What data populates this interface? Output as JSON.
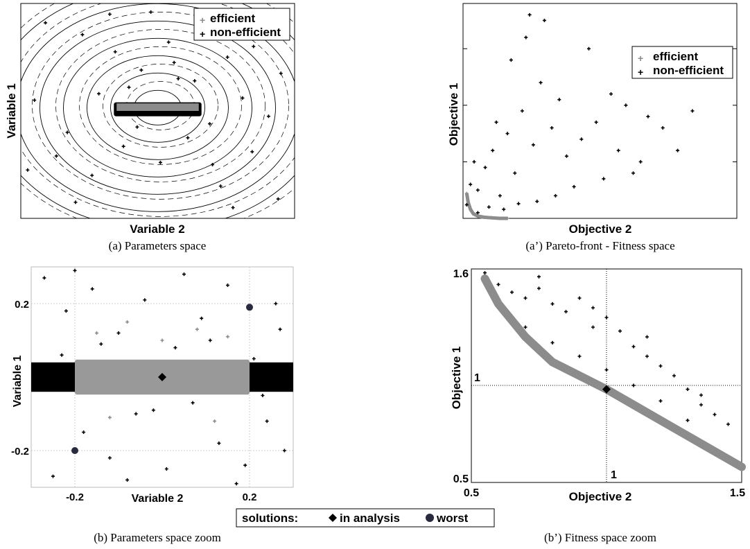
{
  "chart_data": [
    {
      "id": "a",
      "type": "scatter",
      "caption": "(a) Parameters space",
      "xlabel": "Variable 2",
      "ylabel": "Variable 1",
      "xlim": [
        -1,
        1
      ],
      "ylim": [
        -1,
        1
      ],
      "grid": false,
      "legend": {
        "position": "top-right",
        "entries": [
          "efficient",
          "non-efficient"
        ]
      },
      "series": [
        {
          "name": "non-efficient",
          "color": "#000000",
          "marker": "plus",
          "x": [
            -0.82,
            -0.55,
            -0.31,
            -0.12,
            0.08,
            0.27,
            0.51,
            0.74,
            0.9,
            -0.9,
            -0.66,
            -0.43,
            -0.21,
            0.15,
            0.38,
            0.62,
            0.81,
            -0.74,
            -0.48,
            -0.25,
            0.02,
            0.22,
            0.46,
            0.69,
            0.88,
            -0.6,
            -0.35,
            -0.05,
            0.3,
            0.55,
            -0.95,
            -0.15,
            0.12,
            0.4,
            0.7
          ],
          "y": [
            0.82,
            0.71,
            0.55,
            0.38,
            0.64,
            0.28,
            0.5,
            0.77,
            0.35,
            0.1,
            -0.2,
            0.16,
            0.22,
            0.3,
            -0.12,
            0.12,
            -0.05,
            -0.42,
            -0.6,
            -0.33,
            -0.48,
            -0.25,
            -0.7,
            -0.38,
            -0.82,
            -0.85,
            0.9,
            0.92,
            0.88,
            -0.9,
            -0.55,
            -0.15,
            0.45,
            -0.5,
            0.6
          ]
        },
        {
          "name": "efficient",
          "color": "#8c8c8c",
          "marker": "plus",
          "x": [
            -0.28,
            -0.2,
            -0.12,
            -0.04,
            0.04,
            0.12,
            0.2,
            0.28
          ],
          "y": [
            0.03,
            0.04,
            0.03,
            0.04,
            0.03,
            0.04,
            0.03,
            0.04
          ]
        }
      ]
    },
    {
      "id": "a2",
      "type": "scatter",
      "caption": "(a’) Pareto-front - Fitness space",
      "xlabel": "Objective 2",
      "ylabel": "Objective 1",
      "xlim": [
        0.5,
        4.2
      ],
      "ylim": [
        0.5,
        2.4
      ],
      "yticks": [
        1,
        1.5,
        2
      ],
      "grid": false,
      "legend": {
        "position": "top-right",
        "entries": [
          "efficient",
          "non-efficient"
        ]
      },
      "series": [
        {
          "name": "non-efficient",
          "color": "#000000",
          "marker": "plus",
          "x": [
            0.55,
            0.6,
            0.65,
            0.7,
            0.8,
            0.9,
            1.0,
            1.1,
            1.2,
            1.3,
            1.45,
            1.55,
            1.7,
            1.9,
            2.1,
            2.3,
            2.6,
            2.9,
            3.2,
            0.7,
            0.85,
            1.05,
            1.25,
            1.5,
            1.75,
            2.0,
            2.4,
            2.8,
            3.4,
            1.15,
            1.35,
            1.6,
            1.8,
            2.2,
            2.5,
            2.7,
            3.0,
            3.6,
            0.95,
            1.4
          ],
          "y": [
            0.62,
            0.8,
            1.0,
            0.75,
            0.95,
            1.1,
            0.7,
            1.25,
            0.9,
            1.45,
            1.15,
            1.7,
            1.3,
            1.05,
            1.2,
            1.35,
            1.1,
            1.0,
            1.3,
            0.55,
            0.6,
            0.58,
            0.63,
            0.65,
            0.7,
            0.78,
            0.85,
            0.9,
            1.1,
            1.9,
            2.1,
            2.25,
            1.55,
            2.0,
            1.6,
            1.5,
            1.4,
            1.45,
            1.35,
            2.3
          ]
        },
        {
          "name": "efficient",
          "color": "#8c8c8c",
          "marker": "plus",
          "x": [
            0.55,
            0.57,
            0.6,
            0.64,
            0.7,
            0.78,
            0.88,
            1.0,
            1.1
          ],
          "y": [
            0.72,
            0.64,
            0.58,
            0.54,
            0.52,
            0.51,
            0.505,
            0.5,
            0.5
          ]
        }
      ]
    },
    {
      "id": "b",
      "type": "scatter",
      "caption": "(b) Parameters space zoom",
      "xlabel": "Variable 2",
      "ylabel": "Variable 1",
      "xlim": [
        -0.3,
        0.3
      ],
      "ylim": [
        -0.3,
        0.3
      ],
      "xticks": [
        -0.2,
        0.2
      ],
      "yticks": [
        -0.2,
        0.2
      ],
      "grid": true,
      "series": [
        {
          "name": "non-efficient",
          "color": "#000000",
          "marker": "plus",
          "x": [
            -0.27,
            -0.22,
            -0.16,
            -0.1,
            -0.04,
            0.03,
            0.09,
            0.15,
            0.21,
            0.26,
            -0.25,
            -0.18,
            -0.12,
            -0.06,
            0.01,
            0.07,
            0.13,
            0.19,
            0.24,
            0.28,
            -0.23,
            -0.14,
            -0.02,
            0.11,
            0.23,
            -0.2,
            -0.08,
            0.05,
            0.17,
            0.27
          ],
          "y": [
            0.27,
            0.18,
            0.24,
            0.12,
            0.21,
            0.08,
            0.16,
            0.25,
            0.05,
            0.2,
            -0.27,
            -0.15,
            -0.22,
            -0.1,
            -0.25,
            -0.07,
            -0.18,
            -0.24,
            -0.12,
            -0.2,
            0.06,
            0.09,
            -0.09,
            0.1,
            -0.05,
            0.29,
            -0.28,
            0.28,
            -0.29,
            0.13
          ]
        },
        {
          "name": "efficient",
          "color": "#8c8c8c",
          "marker": "plus",
          "x": [
            -0.15,
            -0.08,
            0.0,
            0.08,
            0.15,
            -0.12,
            0.12
          ],
          "y": [
            0.12,
            0.15,
            0.1,
            0.13,
            0.11,
            -0.11,
            -0.12
          ]
        }
      ],
      "markers": [
        {
          "label": "in analysis",
          "symbol": "diamond",
          "x": 0.0,
          "y": 0.0
        },
        {
          "label": "worst",
          "symbol": "circle",
          "x": -0.2,
          "y": -0.2
        },
        {
          "label": "worst",
          "symbol": "circle",
          "x": 0.2,
          "y": 0.19
        }
      ],
      "band": {
        "x": [
          -0.2,
          0.2
        ],
        "y": [
          -0.04,
          0.04
        ],
        "color": "#999999"
      }
    },
    {
      "id": "b2",
      "type": "scatter",
      "caption": "(b’) Fitness space zoom",
      "xlabel": "Objective 2",
      "ylabel": "Objective 1",
      "xlim": [
        0.5,
        1.5
      ],
      "ylim": [
        0.5,
        1.6
      ],
      "xticks": [
        0.5,
        1.5
      ],
      "yticks": [
        0.5,
        1.6
      ],
      "grid": false,
      "reference_lines": {
        "x": 1,
        "y": 1,
        "label": "1"
      },
      "series": [
        {
          "name": "non-efficient",
          "color": "#000000",
          "marker": "plus",
          "x": [
            0.55,
            0.6,
            0.65,
            0.7,
            0.75,
            0.8,
            0.85,
            0.9,
            0.95,
            1.0,
            1.05,
            1.1,
            1.15,
            1.2,
            1.25,
            1.3,
            1.35,
            1.4,
            1.45,
            0.7,
            0.8,
            0.9,
            1.0,
            1.1,
            1.2,
            1.3,
            0.75,
            0.95,
            1.15,
            1.35
          ],
          "y": [
            1.58,
            1.52,
            1.48,
            1.45,
            1.5,
            1.42,
            1.38,
            1.45,
            1.3,
            1.35,
            1.28,
            1.2,
            1.25,
            1.1,
            1.05,
            0.98,
            0.9,
            0.85,
            0.8,
            1.3,
            1.22,
            1.15,
            1.08,
            1.0,
            0.92,
            0.82,
            1.56,
            1.4,
            1.15,
            0.95
          ]
        },
        {
          "name": "efficient",
          "color": "#8c8c8c",
          "marker": "plus",
          "x": [
            0.55,
            0.6,
            0.7,
            0.8,
            0.9,
            1.0,
            1.1,
            1.2,
            1.3,
            1.4,
            1.5
          ],
          "y": [
            1.55,
            1.42,
            1.25,
            1.12,
            1.05,
            0.98,
            0.9,
            0.82,
            0.74,
            0.66,
            0.58
          ]
        }
      ],
      "markers": [
        {
          "label": "in analysis",
          "symbol": "diamond",
          "x": 1.0,
          "y": 0.98
        }
      ]
    }
  ],
  "shared_legend": {
    "title": "solutions:",
    "entries": [
      {
        "label": "in analysis",
        "symbol": "diamond"
      },
      {
        "label": "worst",
        "symbol": "circle"
      }
    ]
  }
}
